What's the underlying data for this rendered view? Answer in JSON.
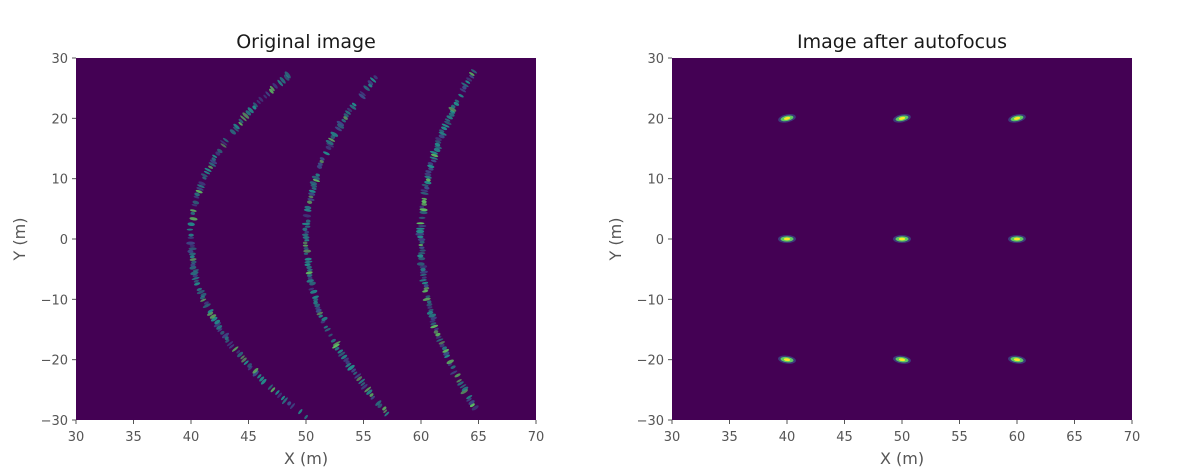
{
  "colors": {
    "background": "#440154",
    "mid": "#3b528b",
    "teal": "#21918c",
    "green": "#5ec962",
    "yellow": "#fde725"
  },
  "chart_data": [
    {
      "type": "heatmap",
      "title": "Original image",
      "xlabel": "X (m)",
      "ylabel": "Y (m)",
      "xlim": [
        30,
        70
      ],
      "ylim": [
        -30,
        30
      ],
      "xticks": [
        30,
        35,
        40,
        45,
        50,
        55,
        60,
        65,
        70
      ],
      "yticks": [
        -30,
        -20,
        -10,
        0,
        10,
        20,
        30
      ],
      "colormap": "viridis",
      "grid": false,
      "arcs": [
        {
          "x": 40.0,
          "y": 0.0,
          "curve": 0.0115,
          "ymin": -29.5,
          "ymax": 27.5
        },
        {
          "x": 50.0,
          "y": 0.0,
          "curve": 0.0085,
          "ymin": -29.0,
          "ymax": 27.5
        },
        {
          "x": 60.0,
          "y": 0.0,
          "curve": 0.006,
          "ymin": -28.0,
          "ymax": 28.0
        }
      ]
    },
    {
      "type": "heatmap",
      "title": "Image after autofocus",
      "xlabel": "X (m)",
      "ylabel": "Y (m)",
      "xlim": [
        30,
        70
      ],
      "ylim": [
        -30,
        30
      ],
      "xticks": [
        30,
        35,
        40,
        45,
        50,
        55,
        60,
        65,
        70
      ],
      "yticks": [
        -30,
        -20,
        -10,
        0,
        10,
        20,
        30
      ],
      "colormap": "viridis",
      "grid": false,
      "points": [
        {
          "x": 40,
          "y": 20
        },
        {
          "x": 50,
          "y": 20
        },
        {
          "x": 60,
          "y": 20
        },
        {
          "x": 40,
          "y": 0
        },
        {
          "x": 50,
          "y": 0
        },
        {
          "x": 60,
          "y": 0
        },
        {
          "x": 40,
          "y": -20
        },
        {
          "x": 50,
          "y": -20
        },
        {
          "x": 60,
          "y": -20
        }
      ]
    }
  ]
}
